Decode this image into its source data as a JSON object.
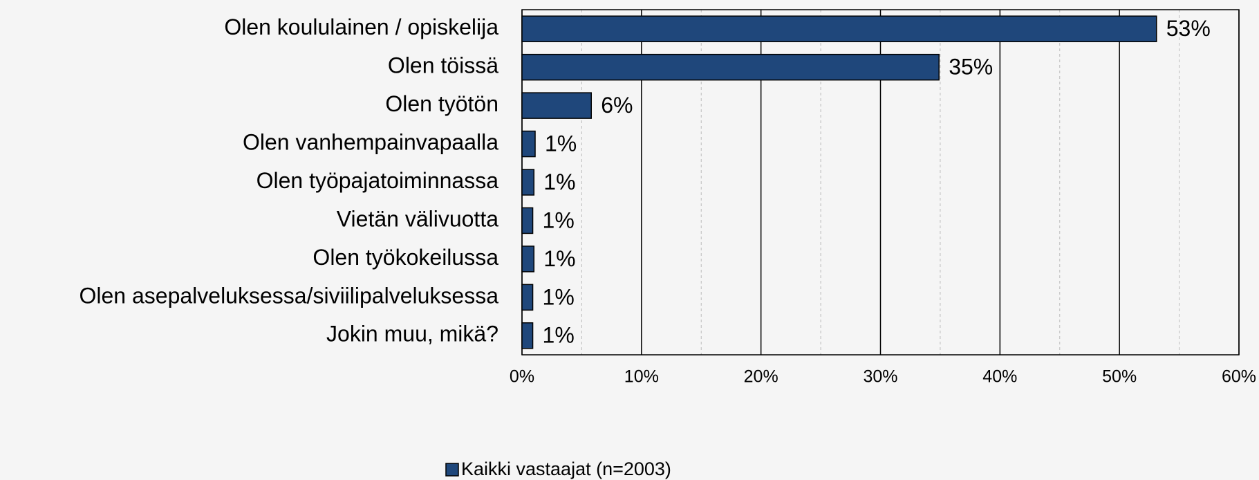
{
  "chart_data": {
    "type": "bar",
    "orientation": "horizontal",
    "categories": [
      "Olen koululainen / opiskelija",
      "Olen töissä",
      "Olen työtön",
      "Olen vanhempainvapaalla",
      "Olen työpajatoiminnassa",
      "Vietän välivuotta",
      "Olen työkokeilussa",
      "Olen asepalveluksessa/siviilipalveluksessa",
      "Jokin muu, mikä?"
    ],
    "series": [
      {
        "name": "Kaikki vastaajat (n=2003)",
        "color": "#1f477b",
        "values": [
          53.1,
          34.9,
          5.8,
          1.1,
          1.0,
          0.9,
          1.0,
          0.9,
          0.9
        ],
        "value_labels": [
          "53%",
          "35%",
          "6%",
          "1%",
          "1%",
          "1%",
          "1%",
          "1%",
          "1%"
        ]
      }
    ],
    "xlim": [
      0,
      60
    ],
    "xticks": [
      {
        "value": 0,
        "label": "0%"
      },
      {
        "value": 10,
        "label": "10%"
      },
      {
        "value": 20,
        "label": "20%"
      },
      {
        "value": 30,
        "label": "30%"
      },
      {
        "value": 40,
        "label": "40%"
      },
      {
        "value": 50,
        "label": "50%"
      },
      {
        "value": 60,
        "label": "60%"
      }
    ],
    "xminor": [
      5,
      15,
      25,
      35,
      45,
      55
    ],
    "grid": true,
    "legend": "bottom"
  }
}
